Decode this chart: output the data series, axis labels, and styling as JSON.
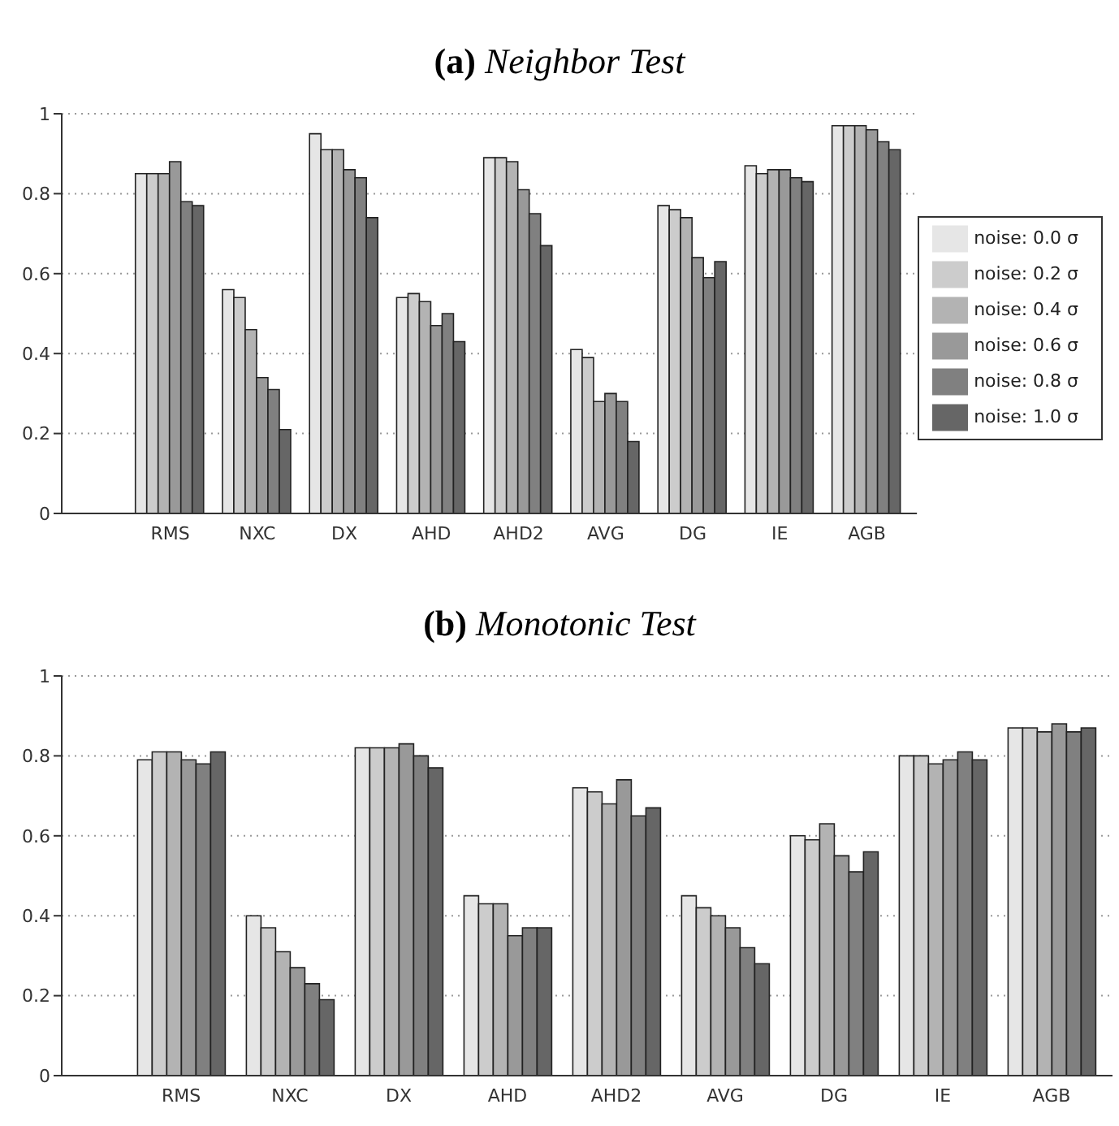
{
  "chart_data": [
    {
      "type": "bar",
      "title": "(a) Neighbor Test",
      "categories": [
        "RMS",
        "NXC",
        "DX",
        "AHD",
        "AHD2",
        "AVG",
        "DG",
        "IE",
        "AGB"
      ],
      "ylim": [
        0,
        1
      ],
      "yticks": [
        0,
        0.2,
        0.4,
        0.6,
        0.8,
        1
      ],
      "grid": "y",
      "legend": "right",
      "series": [
        {
          "name": "noise: 0.0 σ",
          "color": "#e6e6e6",
          "values": [
            0.85,
            0.56,
            0.95,
            0.54,
            0.89,
            0.41,
            0.77,
            0.87,
            0.97
          ]
        },
        {
          "name": "noise: 0.2 σ",
          "color": "#cccccc",
          "values": [
            0.85,
            0.54,
            0.91,
            0.55,
            0.89,
            0.39,
            0.76,
            0.85,
            0.97
          ]
        },
        {
          "name": "noise: 0.4 σ",
          "color": "#b3b3b3",
          "values": [
            0.85,
            0.46,
            0.91,
            0.53,
            0.88,
            0.28,
            0.74,
            0.86,
            0.97
          ]
        },
        {
          "name": "noise: 0.6 σ",
          "color": "#999999",
          "values": [
            0.88,
            0.34,
            0.86,
            0.47,
            0.81,
            0.3,
            0.64,
            0.86,
            0.96
          ]
        },
        {
          "name": "noise: 0.8 σ",
          "color": "#808080",
          "values": [
            0.78,
            0.31,
            0.84,
            0.5,
            0.75,
            0.28,
            0.59,
            0.84,
            0.93
          ]
        },
        {
          "name": "noise: 1.0 σ",
          "color": "#666666",
          "values": [
            0.77,
            0.21,
            0.74,
            0.43,
            0.67,
            0.18,
            0.63,
            0.83,
            0.91
          ]
        }
      ]
    },
    {
      "type": "bar",
      "title": "(b) Monotonic Test",
      "categories": [
        "RMS",
        "NXC",
        "DX",
        "AHD",
        "AHD2",
        "AVG",
        "DG",
        "IE",
        "AGB"
      ],
      "ylim": [
        0,
        1
      ],
      "yticks": [
        0,
        0.2,
        0.4,
        0.6,
        0.8,
        1
      ],
      "grid": "y",
      "series": [
        {
          "color": "#e6e6e6",
          "values": [
            0.79,
            0.4,
            0.82,
            0.45,
            0.72,
            0.45,
            0.6,
            0.8,
            0.87
          ]
        },
        {
          "color": "#cccccc",
          "values": [
            0.81,
            0.37,
            0.82,
            0.43,
            0.71,
            0.42,
            0.59,
            0.8,
            0.87
          ]
        },
        {
          "color": "#b3b3b3",
          "values": [
            0.81,
            0.31,
            0.82,
            0.43,
            0.68,
            0.4,
            0.63,
            0.78,
            0.86
          ]
        },
        {
          "color": "#999999",
          "values": [
            0.79,
            0.27,
            0.83,
            0.35,
            0.74,
            0.37,
            0.55,
            0.79,
            0.88
          ]
        },
        {
          "color": "#808080",
          "values": [
            0.78,
            0.23,
            0.8,
            0.37,
            0.65,
            0.32,
            0.51,
            0.81,
            0.86
          ]
        },
        {
          "color": "#666666",
          "values": [
            0.81,
            0.19,
            0.77,
            0.37,
            0.67,
            0.28,
            0.56,
            0.79,
            0.87
          ]
        }
      ]
    }
  ]
}
